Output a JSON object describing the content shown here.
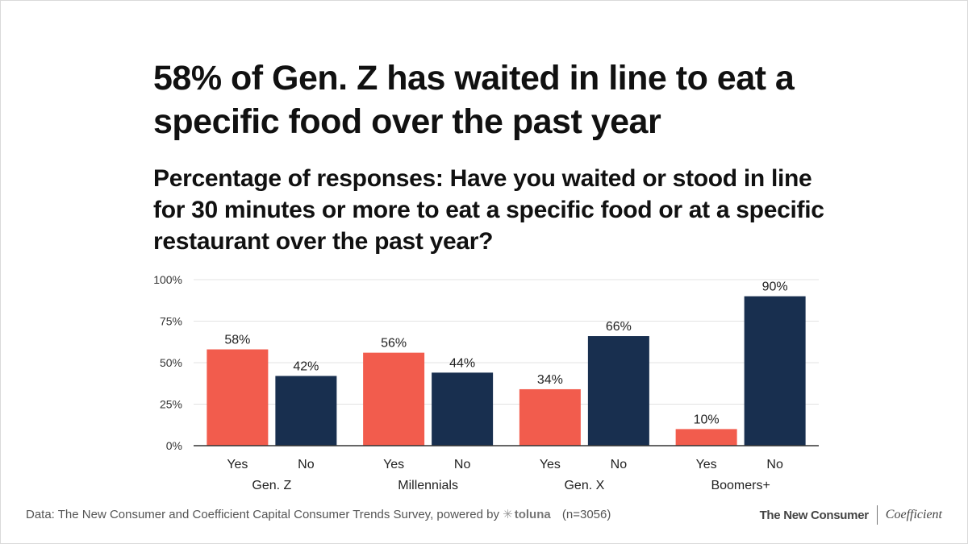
{
  "title": "58% of Gen. Z has waited in line to eat a specific food over the past year",
  "subtitle": "Percentage of responses: Have you waited or stood in line for 30 minutes or more to eat a specific food or at a specific restaurant over the past year?",
  "colors": {
    "yes": "#f25c4d",
    "no": "#182f4f",
    "grid": "#e3e3e3",
    "axis": "#333333"
  },
  "chart_data": {
    "type": "bar",
    "categories": [
      "Gen. Z",
      "Millennials",
      "Gen. X",
      "Boomers+"
    ],
    "series": [
      {
        "name": "Yes",
        "values": [
          58,
          56,
          34,
          10
        ]
      },
      {
        "name": "No",
        "values": [
          42,
          44,
          66,
          90
        ]
      }
    ],
    "data_labels": {
      "Yes": [
        "58%",
        "56%",
        "34%",
        "10%"
      ],
      "No": [
        "42%",
        "44%",
        "66%",
        "90%"
      ]
    },
    "y_ticks": [
      "0%",
      "25%",
      "50%",
      "75%",
      "100%"
    ],
    "y_tick_values": [
      0,
      25,
      50,
      75,
      100
    ],
    "ylim": [
      0,
      100
    ],
    "grid": true,
    "legend": "none"
  },
  "footer": {
    "source": "Data: The New Consumer and Coefficient Capital Consumer Trends Survey, powered by",
    "toluna": "toluna",
    "n": "(n=3056)",
    "logo_left": "The New Consumer",
    "logo_right": "Coefficient"
  }
}
